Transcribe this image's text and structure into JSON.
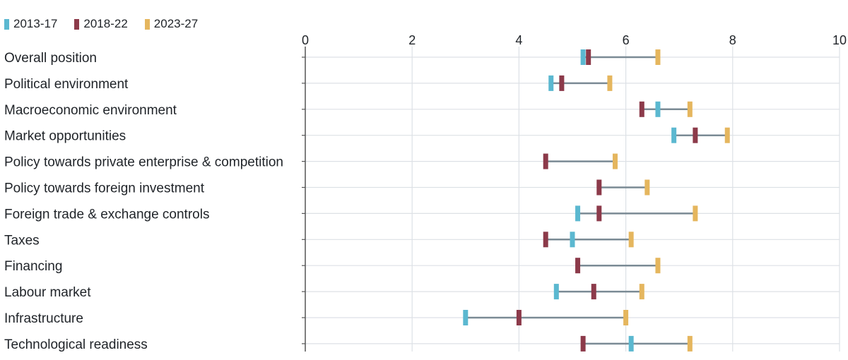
{
  "chart_data": {
    "type": "dot-range",
    "xlim": [
      0,
      10
    ],
    "ticks": [
      "0",
      "2",
      "4",
      "6",
      "8",
      "10"
    ],
    "tick_values": [
      0,
      2,
      4,
      6,
      8,
      10
    ],
    "grid": true,
    "legend_position": "top-left",
    "series": [
      {
        "name": "2013-17",
        "color": "#5bb8d0"
      },
      {
        "name": "2018-22",
        "color": "#8c3a4a"
      },
      {
        "name": "2023-27",
        "color": "#e5b65e"
      }
    ],
    "categories": [
      "Overall position",
      "Political environment",
      "Macroeconomic environment",
      "Market opportunities",
      "Policy towards private enterprise & competition",
      "Policy towards foreign investment",
      "Foreign trade & exchange controls",
      "Taxes",
      "Financing",
      "Labour market",
      "Infrastructure",
      "Technological readiness"
    ],
    "values": {
      "2013-17": [
        5.2,
        4.6,
        6.6,
        6.9,
        null,
        null,
        5.1,
        5.0,
        null,
        4.7,
        3.0,
        6.1
      ],
      "2018-22": [
        5.3,
        4.8,
        6.3,
        7.3,
        4.5,
        5.5,
        5.5,
        4.5,
        5.1,
        5.4,
        4.0,
        5.2
      ],
      "2023-27": [
        6.6,
        5.7,
        7.2,
        7.9,
        5.8,
        6.4,
        7.3,
        6.1,
        6.6,
        6.3,
        6.0,
        7.2
      ]
    }
  }
}
